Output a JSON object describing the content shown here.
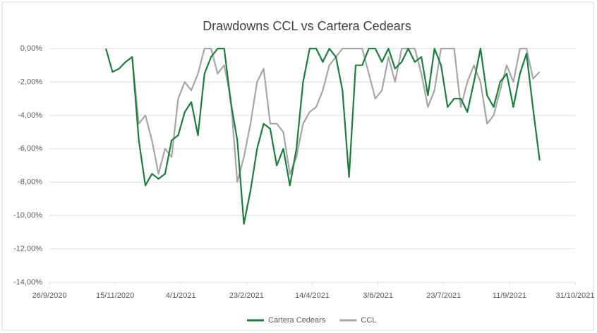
{
  "chart_data": {
    "type": "line",
    "title": "Drawdowns CCL vs Cartera Cedears",
    "x": [
      "2020-11-08",
      "2020-11-13",
      "2020-11-18",
      "2020-11-23",
      "2020-11-28",
      "2020-12-03",
      "2020-12-08",
      "2020-12-13",
      "2020-12-18",
      "2020-12-23",
      "2020-12-28",
      "2021-01-02",
      "2021-01-07",
      "2021-01-12",
      "2021-01-17",
      "2021-01-22",
      "2021-01-27",
      "2021-02-01",
      "2021-02-06",
      "2021-02-11",
      "2021-02-16",
      "2021-02-21",
      "2021-02-26",
      "2021-03-03",
      "2021-03-08",
      "2021-03-13",
      "2021-03-18",
      "2021-03-23",
      "2021-03-28",
      "2021-04-02",
      "2021-04-07",
      "2021-04-12",
      "2021-04-17",
      "2021-04-22",
      "2021-04-27",
      "2021-05-02",
      "2021-05-07",
      "2021-05-12",
      "2021-05-17",
      "2021-05-22",
      "2021-05-27",
      "2021-06-01",
      "2021-06-06",
      "2021-06-11",
      "2021-06-16",
      "2021-06-21",
      "2021-06-26",
      "2021-07-01",
      "2021-07-06",
      "2021-07-11",
      "2021-07-16",
      "2021-07-21",
      "2021-07-26",
      "2021-07-31",
      "2021-08-05",
      "2021-08-10",
      "2021-08-15",
      "2021-08-20",
      "2021-08-25",
      "2021-08-30",
      "2021-09-04",
      "2021-09-09",
      "2021-09-14",
      "2021-09-19",
      "2021-09-24",
      "2021-09-29",
      "2021-10-04"
    ],
    "series": [
      {
        "name": "Cartera Cedears",
        "color": "#1a7f3c",
        "values": [
          0,
          -1.4,
          -1.2,
          -0.8,
          -0.5,
          -5.5,
          -8.2,
          -7.5,
          -7.8,
          -7.5,
          -5.5,
          -5.2,
          -3.8,
          -3.2,
          -5.2,
          -1.5,
          -0.5,
          0,
          0,
          -3.2,
          -5.5,
          -10.5,
          -8.5,
          -6,
          -4.5,
          -4.8,
          -7,
          -6,
          -8.2,
          -6,
          -2,
          0,
          0,
          -0.8,
          0,
          -0.5,
          -2.5,
          -7.7,
          -1,
          -1,
          0,
          0,
          -0.8,
          0,
          -1.2,
          -0.8,
          0,
          -0.8,
          -0.5,
          -2.8,
          0,
          -1,
          -3.5,
          -3,
          -3,
          -3.8,
          -2,
          0,
          -2.8,
          -3.5,
          -2,
          -1.5,
          -3.5,
          -1.5,
          -0.3,
          -3.6,
          -6.7
        ]
      },
      {
        "name": "CCL",
        "color": "#a6a6a6",
        "values": [
          null,
          null,
          null,
          null,
          -0.5,
          -4.5,
          -4,
          -5.5,
          -7.5,
          -6,
          -6.5,
          -3,
          -2,
          -2.5,
          -1.5,
          0,
          0,
          -1.5,
          -1,
          -3,
          -8,
          -6.5,
          -4.5,
          -2,
          -1.2,
          -4.5,
          -4.5,
          -5,
          -7.5,
          -6.5,
          -4.5,
          -3.8,
          -3.5,
          -2.5,
          -1,
          -0.5,
          0,
          0,
          0,
          0,
          -1.5,
          -3,
          -2.5,
          -0.5,
          -2,
          0,
          0,
          0,
          -1.5,
          -3.5,
          -2.5,
          0,
          0,
          0,
          -3.5,
          -2,
          -1,
          -2,
          -4.5,
          -4,
          -2.5,
          -1,
          -2,
          0,
          0,
          -1.8,
          -1.4
        ]
      }
    ],
    "xlim": [
      "2020-09-26",
      "2021-10-31"
    ],
    "xticks": [
      {
        "value": "2020-09-26",
        "label": "26/9/2020"
      },
      {
        "value": "2020-11-15",
        "label": "15/11/2020"
      },
      {
        "value": "2021-01-04",
        "label": "4/1/2021"
      },
      {
        "value": "2021-02-23",
        "label": "23/2/2021"
      },
      {
        "value": "2021-04-14",
        "label": "14/4/2021"
      },
      {
        "value": "2021-06-03",
        "label": "3/6/2021"
      },
      {
        "value": "2021-07-23",
        "label": "23/7/2021"
      },
      {
        "value": "2021-09-11",
        "label": "11/9/2021"
      },
      {
        "value": "2021-10-31",
        "label": "31/10/2021"
      }
    ],
    "ylim": [
      -14,
      0
    ],
    "yticks": [
      {
        "value": 0,
        "label": "0,00%"
      },
      {
        "value": -2,
        "label": "-2,00%"
      },
      {
        "value": -4,
        "label": "-4,00%"
      },
      {
        "value": -6,
        "label": "-6,00%"
      },
      {
        "value": -8,
        "label": "-8,00%"
      },
      {
        "value": -10,
        "label": "-10,00%"
      },
      {
        "value": -12,
        "label": "-12,00%"
      },
      {
        "value": -14,
        "label": "-14,00%"
      }
    ],
    "grid": true,
    "legend": "bottom"
  }
}
